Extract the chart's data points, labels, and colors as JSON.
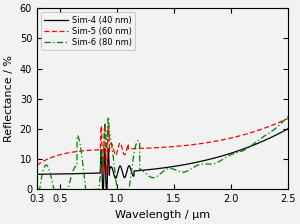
{
  "title": "",
  "xlabel": "Wavelength / μm",
  "ylabel": "Reflectance / %",
  "xlim": [
    0.3,
    2.5
  ],
  "ylim": [
    0,
    60
  ],
  "yticks": [
    0,
    10,
    20,
    30,
    40,
    50,
    60
  ],
  "xticks": [
    0.3,
    0.5,
    1.0,
    1.5,
    2.0,
    2.5
  ],
  "legend": [
    {
      "label": "Sim-4 (40 nm)",
      "color": "black",
      "linestyle": "-"
    },
    {
      "label": "Sim-5 (60 nm)",
      "color": "red",
      "linestyle": "--"
    },
    {
      "label": "Sim-6 (80 nm)",
      "color": "green",
      "linestyle": "-."
    }
  ],
  "background_color": "#f2f2f2"
}
